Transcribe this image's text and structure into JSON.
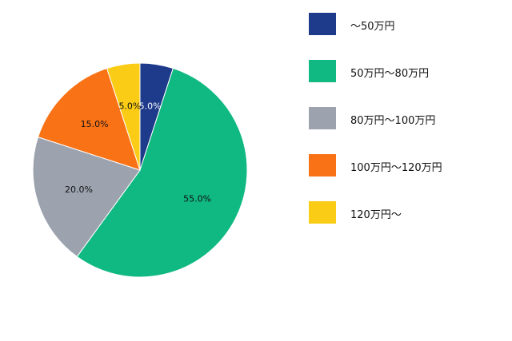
{
  "chart_data": {
    "type": "pie",
    "categories": [
      "〜50万円",
      "50万円〜80万円",
      "80万円〜100万円",
      "100万円〜120万円",
      "120万円〜"
    ],
    "values": [
      5.0,
      55.0,
      20.0,
      15.0,
      5.0
    ],
    "value_labels": [
      "5.0%",
      "55.0%",
      "20.0%",
      "15.0%",
      "5.0%"
    ],
    "colors": [
      "#1e3a8a",
      "#10b981",
      "#9ca3af",
      "#f97316",
      "#facc15"
    ],
    "label_colors": [
      "#ffffff",
      "#111111",
      "#111111",
      "#111111",
      "#111111"
    ],
    "start_angle": "12 o'clock",
    "direction": "clockwise",
    "legend_position": "right"
  }
}
